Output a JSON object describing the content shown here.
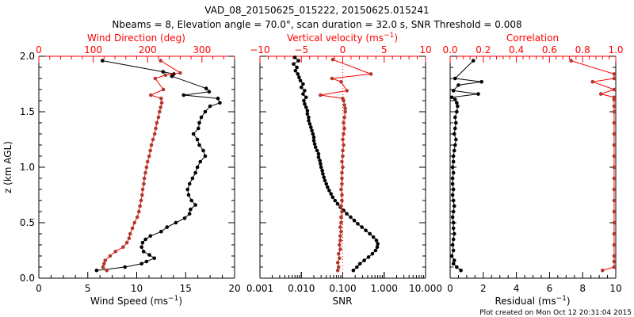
{
  "title_line1": "VAD_08_20150625_015222, 20150625.015241",
  "title_line2": "Nbeams = 8, Elevation angle = 70.0°, scan duration = 32.0 s, SNR Threshold = 0.008",
  "footer": "Plot created on Mon Oct 12 20:31:04 2015",
  "colors": {
    "primary": "#000000",
    "secondary_marker": "#b03a2e",
    "secondary_line": "#ff0000",
    "reference_line": "#ff0000"
  },
  "chart_data": [
    {
      "type": "line",
      "panel": "wind",
      "ylabel": "z (km AGL)",
      "ylim": [
        0,
        2
      ],
      "yticks": [
        "0.0",
        "0.5",
        "1.0",
        "1.5",
        "2.0"
      ],
      "xlabel": "Wind Speed (ms⁻¹)",
      "xlim": [
        0,
        20
      ],
      "xticks": [
        "0",
        "5",
        "10",
        "15",
        "20"
      ],
      "top_xlabel": "Wind Direction (deg)",
      "top_xlim": [
        0,
        360
      ],
      "top_xticks": [
        "0",
        "100",
        "200",
        "300"
      ],
      "series": [
        {
          "name": "Wind Speed",
          "axis": "bottom",
          "color": "black",
          "z": [
            0.07,
            0.1,
            0.13,
            0.15,
            0.18,
            0.21,
            0.24,
            0.28,
            0.32,
            0.35,
            0.38,
            0.42,
            0.46,
            0.5,
            0.54,
            0.58,
            0.62,
            0.66,
            0.7,
            0.75,
            0.8,
            0.85,
            0.9,
            0.95,
            1.0,
            1.05,
            1.1,
            1.15,
            1.2,
            1.25,
            1.3,
            1.35,
            1.4,
            1.45,
            1.5,
            1.55,
            1.58,
            1.62,
            1.65,
            1.68,
            1.71,
            1.82,
            1.84,
            1.86,
            1.96
          ],
          "values": [
            5.9,
            8.8,
            10.5,
            11.0,
            11.8,
            11.3,
            10.7,
            10.5,
            10.6,
            10.9,
            11.4,
            12.5,
            13.1,
            14.0,
            14.9,
            15.4,
            15.5,
            16.0,
            15.6,
            15.3,
            15.2,
            15.4,
            15.7,
            16.0,
            16.2,
            16.5,
            17.0,
            16.8,
            16.4,
            16.2,
            15.8,
            16.3,
            16.4,
            16.6,
            17.0,
            17.5,
            18.5,
            18.3,
            14.8,
            17.4,
            17.1,
            13.6,
            13.8,
            12.7,
            6.5
          ]
        },
        {
          "name": "Wind Direction",
          "axis": "top",
          "color": "brown",
          "z": [
            0.07,
            0.1,
            0.13,
            0.16,
            0.2,
            0.24,
            0.28,
            0.32,
            0.36,
            0.4,
            0.45,
            0.5,
            0.55,
            0.6,
            0.65,
            0.7,
            0.75,
            0.8,
            0.85,
            0.9,
            0.95,
            1.0,
            1.05,
            1.1,
            1.15,
            1.2,
            1.25,
            1.3,
            1.35,
            1.4,
            1.45,
            1.5,
            1.54,
            1.58,
            1.62,
            1.65,
            1.7,
            1.8,
            1.83,
            1.85,
            1.96
          ],
          "values": [
            125,
            118,
            120,
            122,
            131,
            141,
            155,
            162,
            166,
            168,
            172,
            176,
            181,
            184,
            186,
            188,
            190,
            191,
            193,
            194,
            196,
            198,
            200,
            203,
            205,
            207,
            210,
            213,
            215,
            217,
            220,
            222,
            224,
            226,
            225,
            206,
            229,
            214,
            233,
            260,
            224
          ]
        }
      ]
    },
    {
      "type": "line",
      "panel": "snr",
      "xlabel": "SNR",
      "xscale": "log",
      "xlim": [
        0.001,
        10
      ],
      "xticks": [
        "0.001",
        "0.010",
        "0.100",
        "1.000",
        "10.000"
      ],
      "top_xlabel": "Vertical velocity (ms⁻¹)",
      "top_xlim": [
        -10,
        10
      ],
      "top_xticks": [
        "−10",
        "−5",
        "0",
        "5",
        "10"
      ],
      "reference_line": {
        "axis": "top",
        "value": 0,
        "style": "dotted"
      },
      "series": [
        {
          "name": "SNR",
          "axis": "bottom",
          "color": "black",
          "z": [
            0.07,
            0.1,
            0.13,
            0.16,
            0.19,
            0.22,
            0.25,
            0.28,
            0.31,
            0.34,
            0.37,
            0.4,
            0.43,
            0.46,
            0.49,
            0.52,
            0.55,
            0.58,
            0.61,
            0.64,
            0.67,
            0.7,
            0.73,
            0.76,
            0.79,
            0.82,
            0.85,
            0.88,
            0.91,
            0.94,
            0.97,
            1.0,
            1.03,
            1.06,
            1.09,
            1.12,
            1.15,
            1.18,
            1.21,
            1.24,
            1.27,
            1.3,
            1.33,
            1.36,
            1.39,
            1.42,
            1.45,
            1.48,
            1.51,
            1.54,
            1.57,
            1.6,
            1.63,
            1.66,
            1.69,
            1.72,
            1.75,
            1.78,
            1.81,
            1.84,
            1.87,
            1.9,
            1.93,
            1.96,
            1.99
          ],
          "values": [
            0.18,
            0.22,
            0.26,
            0.33,
            0.42,
            0.52,
            0.62,
            0.68,
            0.7,
            0.65,
            0.55,
            0.45,
            0.36,
            0.29,
            0.23,
            0.19,
            0.155,
            0.125,
            0.105,
            0.088,
            0.075,
            0.065,
            0.057,
            0.052,
            0.047,
            0.043,
            0.04,
            0.037,
            0.035,
            0.033,
            0.032,
            0.03,
            0.029,
            0.028,
            0.026,
            0.026,
            0.024,
            0.022,
            0.021,
            0.02,
            0.02,
            0.019,
            0.018,
            0.017,
            0.016,
            0.015,
            0.015,
            0.014,
            0.014,
            0.013,
            0.012,
            0.0115,
            0.013,
            0.011,
            0.012,
            0.01,
            0.011,
            0.0095,
            0.0088,
            0.0082,
            0.0072,
            0.0078,
            0.0065,
            0.0085,
            0.007
          ]
        },
        {
          "name": "Vertical velocity",
          "axis": "top",
          "color": "brown",
          "z": [
            0.07,
            0.1,
            0.14,
            0.18,
            0.22,
            0.26,
            0.3,
            0.34,
            0.38,
            0.42,
            0.46,
            0.5,
            0.55,
            0.6,
            0.65,
            0.7,
            0.75,
            0.8,
            0.85,
            0.9,
            0.95,
            1.0,
            1.05,
            1.1,
            1.15,
            1.2,
            1.25,
            1.3,
            1.35,
            1.4,
            1.45,
            1.5,
            1.53,
            1.56,
            1.6,
            1.62,
            1.65,
            1.69,
            1.77,
            1.8,
            1.84,
            1.97
          ],
          "values": [
            -0.6,
            -0.5,
            -0.6,
            -0.4,
            -0.5,
            -0.3,
            -0.4,
            -0.3,
            -0.3,
            -0.2,
            -0.3,
            -0.2,
            -0.2,
            -0.1,
            -0.2,
            -0.1,
            -0.1,
            -0.2,
            -0.1,
            -0.1,
            -0.1,
            0.0,
            -0.1,
            0.0,
            0.0,
            0.1,
            0.0,
            0.1,
            0.2,
            0.1,
            0.2,
            0.3,
            0.3,
            0.2,
            0.1,
            0.0,
            -2.7,
            0.5,
            -0.2,
            -1.3,
            3.4,
            -1.2
          ]
        }
      ]
    },
    {
      "type": "line",
      "panel": "residual",
      "xlabel": "Residual (ms⁻¹)",
      "xlim": [
        0,
        10
      ],
      "xticks": [
        "0",
        "2",
        "4",
        "6",
        "8",
        "10"
      ],
      "top_xlabel": "Correlation",
      "top_xlim": [
        0,
        1
      ],
      "top_xticks": [
        "0.0",
        "0.2",
        "0.4",
        "0.6",
        "0.8",
        "1.0"
      ],
      "series": [
        {
          "name": "Residual",
          "axis": "bottom",
          "color": "black",
          "z": [
            0.07,
            0.1,
            0.13,
            0.16,
            0.2,
            0.25,
            0.3,
            0.35,
            0.4,
            0.45,
            0.5,
            0.55,
            0.6,
            0.65,
            0.7,
            0.75,
            0.8,
            0.85,
            0.9,
            0.95,
            1.0,
            1.05,
            1.1,
            1.15,
            1.2,
            1.25,
            1.3,
            1.35,
            1.4,
            1.45,
            1.5,
            1.55,
            1.58,
            1.61,
            1.63,
            1.66,
            1.69,
            1.74,
            1.77,
            1.8,
            1.96
          ],
          "values": [
            0.65,
            0.4,
            0.2,
            0.25,
            0.1,
            0.2,
            0.15,
            0.2,
            0.25,
            0.2,
            0.2,
            0.15,
            0.2,
            0.25,
            0.2,
            0.15,
            0.2,
            0.15,
            0.15,
            0.2,
            0.15,
            0.2,
            0.2,
            0.25,
            0.3,
            0.35,
            0.25,
            0.3,
            0.35,
            0.3,
            0.4,
            0.45,
            0.4,
            0.3,
            0.1,
            1.7,
            0.2,
            0.5,
            1.9,
            0.3,
            1.4
          ]
        },
        {
          "name": "Correlation",
          "axis": "top",
          "color": "brown",
          "z": [
            0.07,
            0.1,
            0.15,
            0.2,
            0.3,
            0.4,
            0.5,
            0.6,
            0.7,
            0.8,
            0.9,
            1.0,
            1.1,
            1.2,
            1.3,
            1.4,
            1.5,
            1.55,
            1.61,
            1.63,
            1.66,
            1.7,
            1.77,
            1.8,
            1.84,
            1.96
          ],
          "values": [
            0.92,
            0.99,
            0.99,
            0.99,
            0.99,
            0.99,
            0.99,
            0.99,
            0.99,
            0.99,
            0.99,
            0.99,
            0.99,
            0.99,
            0.99,
            0.99,
            0.99,
            0.99,
            0.99,
            0.99,
            0.91,
            0.99,
            0.86,
            0.99,
            0.99,
            0.73
          ]
        }
      ]
    }
  ]
}
